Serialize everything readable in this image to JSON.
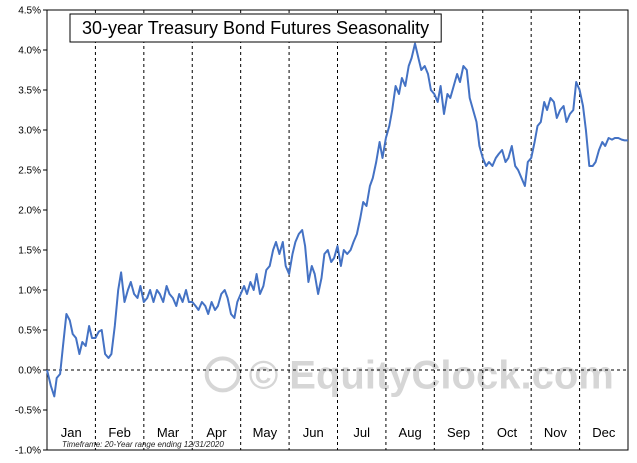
{
  "chart_data": {
    "type": "line",
    "title": "30-year Treasury Bond Futures Seasonality",
    "xlabel": "",
    "ylabel": "",
    "months": [
      "Jan",
      "Feb",
      "Mar",
      "Apr",
      "May",
      "Jun",
      "Jul",
      "Aug",
      "Sep",
      "Oct",
      "Nov",
      "Dec"
    ],
    "y_ticks": [
      "4.5%",
      "4.0%",
      "3.5%",
      "3.0%",
      "2.5%",
      "2.0%",
      "1.5%",
      "1.0%",
      "0.5%",
      "0.0%",
      "-0.5%",
      "-1.0%"
    ],
    "ylim": [
      -1.0,
      4.5
    ],
    "grid": "vertical dashed month separators, zero baseline",
    "line_color": "#4472c4",
    "footnote": "Timeframe:  20-Year range ending 12/31/2020",
    "watermark": "© EquityClock.com",
    "series": [
      {
        "x": [
          0,
          0.08,
          0.15,
          0.2,
          0.27,
          0.33,
          0.4,
          0.47,
          0.53,
          0.6,
          0.67,
          0.73,
          0.8,
          0.87,
          0.93,
          1.0,
          1.07,
          1.13,
          1.2,
          1.27,
          1.33,
          1.4,
          1.47,
          1.53,
          1.6,
          1.67,
          1.73,
          1.8,
          1.87,
          1.93,
          2.0,
          2.07,
          2.13,
          2.2,
          2.27,
          2.33,
          2.4,
          2.47,
          2.53,
          2.6,
          2.67,
          2.73,
          2.8,
          2.87,
          2.93,
          3.0,
          3.07,
          3.13,
          3.2,
          3.27,
          3.33,
          3.4,
          3.47,
          3.53,
          3.6,
          3.67,
          3.73,
          3.8,
          3.87,
          3.93,
          4.0,
          4.07,
          4.13,
          4.2,
          4.27,
          4.33,
          4.4,
          4.47,
          4.53,
          4.6,
          4.67,
          4.73,
          4.8,
          4.87,
          4.93,
          5.0,
          5.07,
          5.13,
          5.2,
          5.27,
          5.33,
          5.4,
          5.47,
          5.53,
          5.6,
          5.67,
          5.73,
          5.8,
          5.87,
          5.93,
          6.0,
          6.07,
          6.13,
          6.2,
          6.27,
          6.33,
          6.4,
          6.47,
          6.53,
          6.6,
          6.67,
          6.73,
          6.8,
          6.87,
          6.93,
          7.0,
          7.07,
          7.13,
          7.2,
          7.27,
          7.33,
          7.4,
          7.47,
          7.53,
          7.6,
          7.67,
          7.73,
          7.8,
          7.87,
          7.93,
          8.0,
          8.07,
          8.13,
          8.2,
          8.27,
          8.33,
          8.4,
          8.47,
          8.53,
          8.6,
          8.67,
          8.73,
          8.8,
          8.87,
          8.93,
          9.0,
          9.07,
          9.13,
          9.2,
          9.27,
          9.33,
          9.4,
          9.47,
          9.53,
          9.6,
          9.67,
          9.73,
          9.8,
          9.87,
          9.93,
          10.0,
          10.07,
          10.13,
          10.2,
          10.27,
          10.33,
          10.4,
          10.47,
          10.53,
          10.6,
          10.67,
          10.73,
          10.8,
          10.87,
          10.93,
          11.0,
          11.07,
          11.13,
          11.2,
          11.27,
          11.33,
          11.4,
          11.47,
          11.53,
          11.6,
          11.67,
          11.73,
          11.8,
          11.87,
          11.93,
          12.0
        ],
        "y": [
          0.0,
          -0.2,
          -0.33,
          -0.1,
          -0.05,
          0.3,
          0.7,
          0.62,
          0.45,
          0.4,
          0.2,
          0.35,
          0.3,
          0.55,
          0.4,
          0.4,
          0.48,
          0.5,
          0.2,
          0.15,
          0.2,
          0.55,
          1.0,
          1.22,
          0.85,
          1.0,
          1.1,
          0.95,
          0.9,
          1.05,
          0.85,
          0.9,
          1.0,
          0.85,
          1.0,
          0.95,
          0.85,
          1.05,
          0.95,
          0.9,
          0.8,
          0.95,
          0.85,
          1.0,
          0.85,
          0.85,
          0.8,
          0.75,
          0.85,
          0.8,
          0.7,
          0.85,
          0.75,
          0.8,
          0.95,
          1.0,
          0.9,
          0.7,
          0.65,
          0.85,
          0.95,
          1.05,
          0.95,
          1.1,
          1.0,
          1.2,
          0.95,
          1.05,
          1.25,
          1.3,
          1.5,
          1.6,
          1.45,
          1.6,
          1.3,
          1.2,
          1.45,
          1.6,
          1.7,
          1.75,
          1.55,
          1.1,
          1.3,
          1.2,
          0.95,
          1.15,
          1.45,
          1.5,
          1.35,
          1.4,
          1.55,
          1.3,
          1.5,
          1.45,
          1.5,
          1.6,
          1.7,
          1.9,
          2.1,
          2.05,
          2.3,
          2.4,
          2.6,
          2.85,
          2.65,
          2.9,
          3.05,
          3.25,
          3.55,
          3.45,
          3.65,
          3.55,
          3.8,
          3.9,
          4.08,
          3.9,
          3.75,
          3.8,
          3.7,
          3.5,
          3.45,
          3.35,
          3.55,
          3.2,
          3.45,
          3.4,
          3.55,
          3.7,
          3.6,
          3.8,
          3.75,
          3.4,
          3.25,
          3.1,
          2.8,
          2.65,
          2.55,
          2.6,
          2.55,
          2.65,
          2.7,
          2.75,
          2.6,
          2.65,
          2.8,
          2.55,
          2.5,
          2.4,
          2.3,
          2.6,
          2.65,
          2.85,
          3.05,
          3.1,
          3.35,
          3.25,
          3.4,
          3.35,
          3.15,
          3.25,
          3.3,
          3.1,
          3.2,
          3.25,
          3.6,
          3.5,
          3.3,
          3.0,
          2.55,
          2.55,
          2.6,
          2.75,
          2.85,
          2.8,
          2.9,
          2.88,
          2.9,
          2.9,
          2.88,
          2.87,
          2.87
        ]
      }
    ]
  }
}
